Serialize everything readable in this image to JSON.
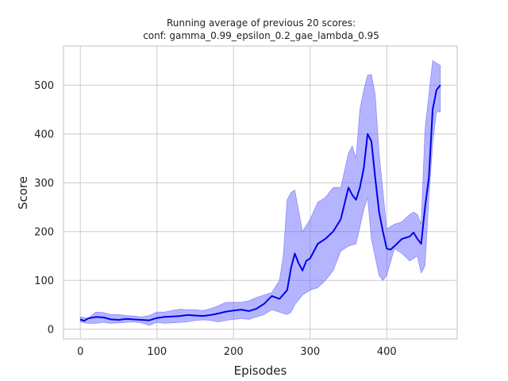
{
  "chart_data": {
    "type": "line",
    "title_line1": "Running average of previous 20 scores:",
    "title_line2": "conf: gamma_0.99_epsilon_0.2_gae_lambda_0.95",
    "xlabel": "Episodes",
    "ylabel": "Score",
    "xlim": [
      -22,
      492
    ],
    "ylim": [
      -20,
      580
    ],
    "xticks": [
      0,
      100,
      200,
      300,
      400
    ],
    "yticks": [
      0,
      100,
      200,
      300,
      400,
      500
    ],
    "grid": true,
    "legend": "none",
    "colors": {
      "line": "#0000ee",
      "band": "#5b5bff"
    },
    "series": [
      {
        "mean": [
          [
            0,
            20
          ],
          [
            5,
            17
          ],
          [
            10,
            22
          ],
          [
            20,
            25
          ],
          [
            30,
            24
          ],
          [
            40,
            20
          ],
          [
            50,
            19
          ],
          [
            60,
            21
          ],
          [
            70,
            20
          ],
          [
            80,
            19
          ],
          [
            90,
            18
          ],
          [
            100,
            23
          ],
          [
            110,
            25
          ],
          [
            120,
            26
          ],
          [
            130,
            27
          ],
          [
            140,
            29
          ],
          [
            150,
            28
          ],
          [
            160,
            27
          ],
          [
            170,
            29
          ],
          [
            180,
            32
          ],
          [
            190,
            36
          ],
          [
            200,
            38
          ],
          [
            210,
            40
          ],
          [
            220,
            37
          ],
          [
            230,
            42
          ],
          [
            240,
            52
          ],
          [
            250,
            68
          ],
          [
            260,
            62
          ],
          [
            270,
            80
          ],
          [
            275,
            125
          ],
          [
            280,
            155
          ],
          [
            285,
            135
          ],
          [
            290,
            120
          ],
          [
            295,
            140
          ],
          [
            300,
            145
          ],
          [
            310,
            175
          ],
          [
            320,
            185
          ],
          [
            330,
            200
          ],
          [
            340,
            225
          ],
          [
            350,
            290
          ],
          [
            355,
            275
          ],
          [
            360,
            265
          ],
          [
            365,
            290
          ],
          [
            370,
            330
          ],
          [
            375,
            400
          ],
          [
            380,
            385
          ],
          [
            385,
            310
          ],
          [
            390,
            240
          ],
          [
            395,
            200
          ],
          [
            400,
            165
          ],
          [
            405,
            163
          ],
          [
            410,
            170
          ],
          [
            420,
            185
          ],
          [
            430,
            190
          ],
          [
            435,
            198
          ],
          [
            440,
            185
          ],
          [
            445,
            175
          ],
          [
            450,
            250
          ],
          [
            455,
            310
          ],
          [
            460,
            450
          ],
          [
            465,
            490
          ],
          [
            470,
            500
          ]
        ],
        "upper": [
          [
            0,
            25
          ],
          [
            10,
            22
          ],
          [
            20,
            35
          ],
          [
            30,
            34
          ],
          [
            40,
            30
          ],
          [
            50,
            30
          ],
          [
            60,
            28
          ],
          [
            70,
            27
          ],
          [
            80,
            25
          ],
          [
            90,
            28
          ],
          [
            100,
            35
          ],
          [
            110,
            35
          ],
          [
            120,
            38
          ],
          [
            130,
            41
          ],
          [
            140,
            40
          ],
          [
            150,
            40
          ],
          [
            160,
            38
          ],
          [
            170,
            42
          ],
          [
            180,
            48
          ],
          [
            190,
            55
          ],
          [
            200,
            55
          ],
          [
            210,
            55
          ],
          [
            220,
            58
          ],
          [
            230,
            65
          ],
          [
            240,
            70
          ],
          [
            250,
            75
          ],
          [
            260,
            100
          ],
          [
            265,
            150
          ],
          [
            270,
            265
          ],
          [
            275,
            280
          ],
          [
            280,
            285
          ],
          [
            290,
            200
          ],
          [
            300,
            225
          ],
          [
            310,
            260
          ],
          [
            320,
            270
          ],
          [
            330,
            290
          ],
          [
            340,
            290
          ],
          [
            350,
            360
          ],
          [
            355,
            375
          ],
          [
            360,
            350
          ],
          [
            365,
            450
          ],
          [
            370,
            490
          ],
          [
            375,
            520
          ],
          [
            380,
            522
          ],
          [
            385,
            480
          ],
          [
            390,
            360
          ],
          [
            400,
            205
          ],
          [
            410,
            215
          ],
          [
            420,
            220
          ],
          [
            430,
            235
          ],
          [
            435,
            240
          ],
          [
            440,
            235
          ],
          [
            445,
            215
          ],
          [
            450,
            410
          ],
          [
            455,
            480
          ],
          [
            460,
            550
          ],
          [
            465,
            545
          ],
          [
            470,
            540
          ]
        ],
        "lower": [
          [
            470,
            445
          ],
          [
            465,
            445
          ],
          [
            460,
            380
          ],
          [
            455,
            270
          ],
          [
            450,
            130
          ],
          [
            445,
            115
          ],
          [
            440,
            150
          ],
          [
            435,
            145
          ],
          [
            430,
            140
          ],
          [
            420,
            155
          ],
          [
            410,
            165
          ],
          [
            400,
            110
          ],
          [
            395,
            100
          ],
          [
            390,
            110
          ],
          [
            380,
            185
          ],
          [
            375,
            270
          ],
          [
            370,
            245
          ],
          [
            360,
            175
          ],
          [
            350,
            170
          ],
          [
            340,
            160
          ],
          [
            330,
            120
          ],
          [
            320,
            100
          ],
          [
            310,
            85
          ],
          [
            300,
            80
          ],
          [
            290,
            70
          ],
          [
            280,
            50
          ],
          [
            275,
            35
          ],
          [
            270,
            30
          ],
          [
            260,
            35
          ],
          [
            250,
            40
          ],
          [
            240,
            30
          ],
          [
            230,
            25
          ],
          [
            220,
            20
          ],
          [
            210,
            22
          ],
          [
            200,
            20
          ],
          [
            190,
            18
          ],
          [
            180,
            15
          ],
          [
            170,
            18
          ],
          [
            160,
            19
          ],
          [
            150,
            18
          ],
          [
            140,
            15
          ],
          [
            130,
            14
          ],
          [
            120,
            13
          ],
          [
            110,
            12
          ],
          [
            100,
            14
          ],
          [
            90,
            8
          ],
          [
            80,
            13
          ],
          [
            70,
            15
          ],
          [
            60,
            14
          ],
          [
            50,
            13
          ],
          [
            40,
            12
          ],
          [
            30,
            14
          ],
          [
            20,
            12
          ],
          [
            10,
            12
          ],
          [
            0,
            15
          ]
        ]
      }
    ]
  }
}
